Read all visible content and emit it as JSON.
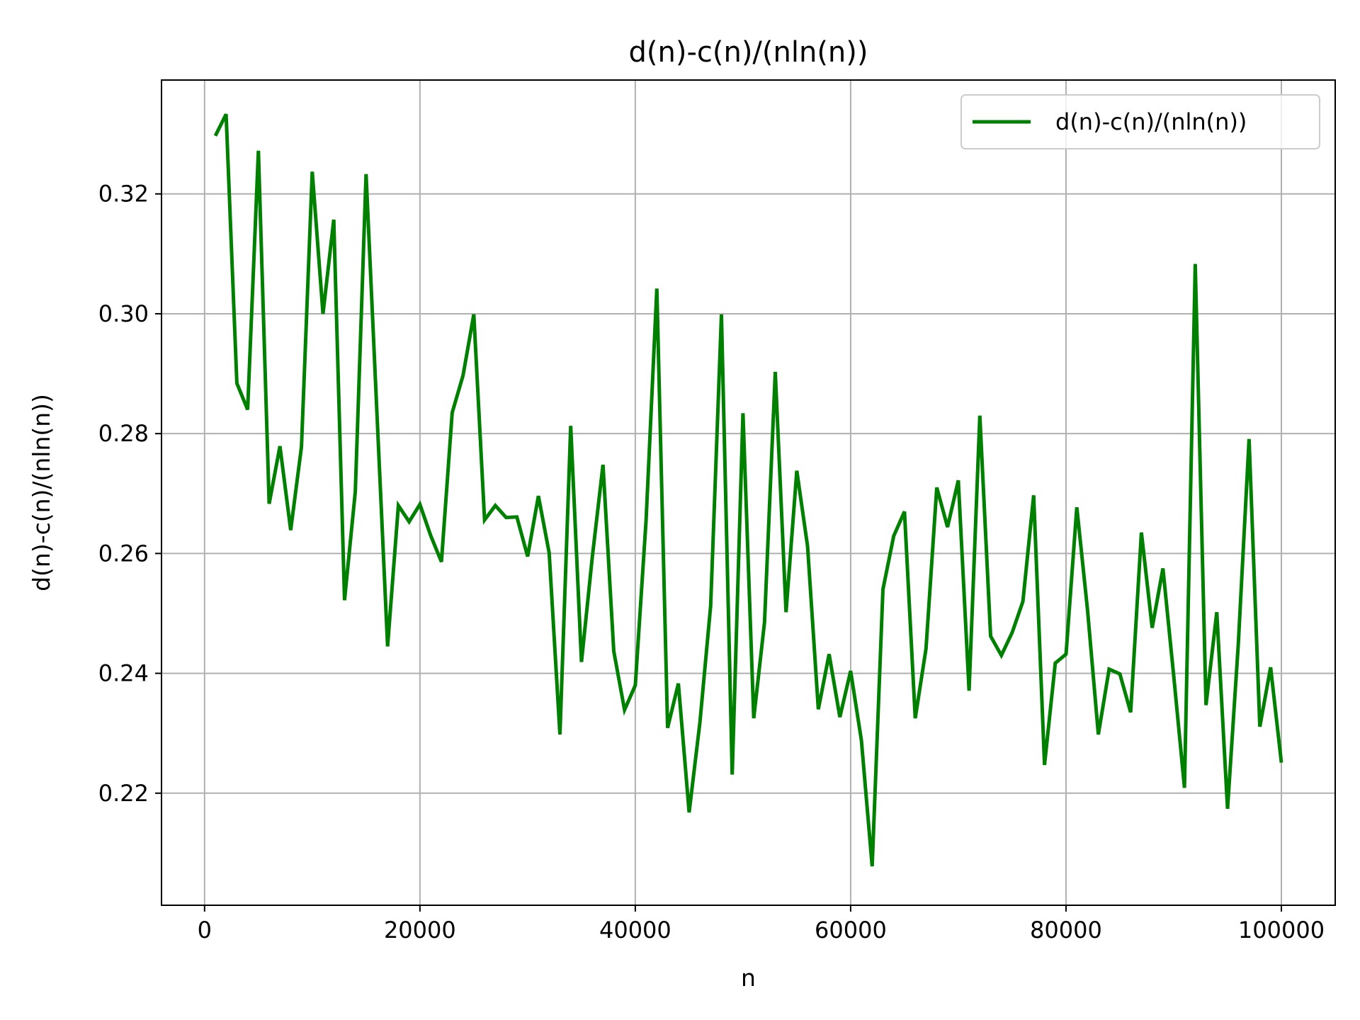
{
  "chart_data": {
    "type": "line",
    "title": "d(n)-c(n)/(nln(n))",
    "xlabel": "n",
    "ylabel": "d(n)-c(n)/(nln(n))",
    "xlim": [
      -4000,
      105000
    ],
    "ylim": [
      0.2013,
      0.339
    ],
    "xticks": [
      0,
      20000,
      40000,
      60000,
      80000,
      100000
    ],
    "xtick_labels": [
      "0",
      "20000",
      "40000",
      "60000",
      "80000",
      "100000"
    ],
    "yticks": [
      0.22,
      0.24,
      0.26,
      0.28,
      0.3,
      0.32
    ],
    "ytick_labels": [
      "0.22",
      "0.24",
      "0.26",
      "0.28",
      "0.30",
      "0.32"
    ],
    "grid": true,
    "legend_position": "top-right",
    "series": [
      {
        "name": "d(n)-c(n)/(nln(n))",
        "color": "#008000",
        "x": [
          1000,
          2000,
          3000,
          4000,
          5000,
          6000,
          7000,
          8000,
          9000,
          10000,
          11000,
          12000,
          13000,
          14000,
          15000,
          16000,
          17000,
          18000,
          19000,
          20000,
          21000,
          22000,
          23000,
          24000,
          25000,
          26000,
          27000,
          28000,
          29000,
          30000,
          31000,
          32000,
          33000,
          34000,
          35000,
          36000,
          37000,
          38000,
          39000,
          40000,
          41000,
          42000,
          43000,
          44000,
          45000,
          46000,
          47000,
          48000,
          49000,
          50000,
          51000,
          52000,
          53000,
          54000,
          55000,
          56000,
          57000,
          58000,
          59000,
          60000,
          61000,
          62000,
          63000,
          64000,
          65000,
          66000,
          67000,
          68000,
          69000,
          70000,
          71000,
          72000,
          73000,
          74000,
          75000,
          76000,
          77000,
          78000,
          79000,
          80000,
          81000,
          82000,
          83000,
          84000,
          85000,
          86000,
          87000,
          88000,
          89000,
          90000,
          91000,
          92000,
          93000,
          94000,
          95000,
          96000,
          97000,
          98000,
          99000,
          100000
        ],
        "y": [
          0.3297,
          0.3333,
          0.2884,
          0.284,
          0.3272,
          0.2683,
          0.2779,
          0.2639,
          0.2778,
          0.3237,
          0.3,
          0.3157,
          0.2522,
          0.2703,
          0.3233,
          0.2838,
          0.2445,
          0.268,
          0.2653,
          0.2682,
          0.263,
          0.2586,
          0.2835,
          0.2897,
          0.2999,
          0.2656,
          0.268,
          0.266,
          0.2661,
          0.2595,
          0.2696,
          0.2601,
          0.2298,
          0.2813,
          0.2419,
          0.2593,
          0.2748,
          0.2437,
          0.2339,
          0.238,
          0.2655,
          0.3042,
          0.2309,
          0.2383,
          0.2168,
          0.2318,
          0.2513,
          0.2999,
          0.2231,
          0.2834,
          0.2325,
          0.2485,
          0.2903,
          0.2502,
          0.2738,
          0.2612,
          0.234,
          0.2432,
          0.2327,
          0.2404,
          0.2288,
          0.2078,
          0.254,
          0.2629,
          0.267,
          0.2325,
          0.2441,
          0.271,
          0.2644,
          0.2722,
          0.2371,
          0.283,
          0.2462,
          0.243,
          0.2468,
          0.252,
          0.2697,
          0.2247,
          0.2417,
          0.2432,
          0.2677,
          0.2505,
          0.2298,
          0.2407,
          0.2399,
          0.2335,
          0.2635,
          0.2476,
          0.2575,
          0.2396,
          0.2209,
          0.3083,
          0.2347,
          0.2502,
          0.2174,
          0.2449,
          0.2791,
          0.2311,
          0.241,
          0.2251
        ]
      }
    ]
  }
}
